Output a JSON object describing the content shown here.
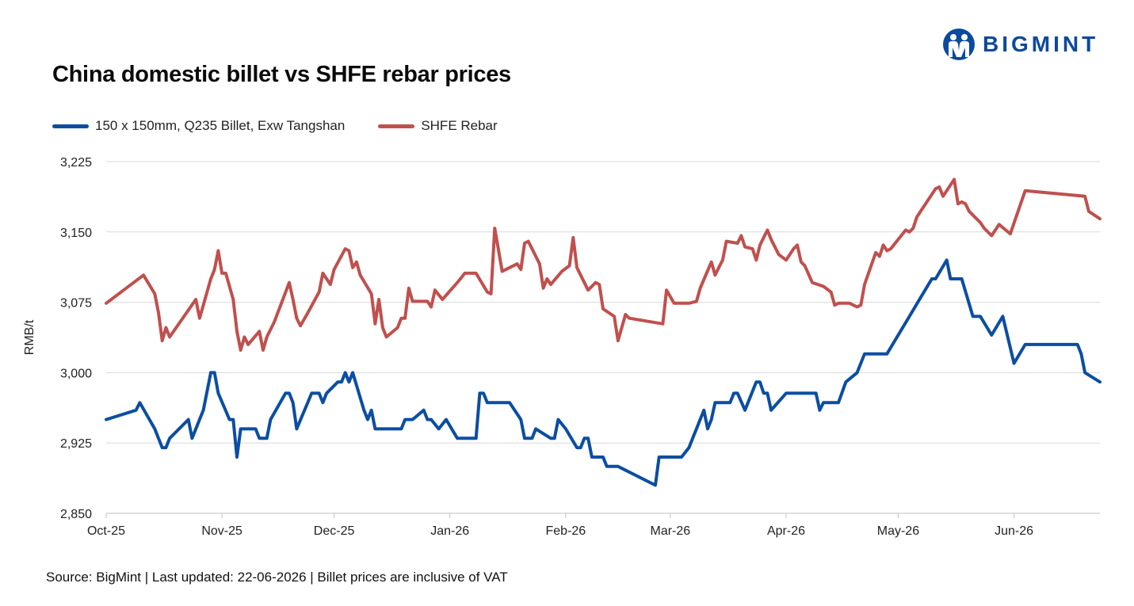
{
  "brand": {
    "name": "BIGMINT",
    "color": "#0b4a9c"
  },
  "chart_data": {
    "type": "line",
    "title": "China domestic billet vs SHFE rebar prices",
    "xlabel": "",
    "ylabel": "RMB/t",
    "ylim": [
      2850,
      3225
    ],
    "yticks": [
      2850,
      2925,
      3000,
      3075,
      3150,
      3225
    ],
    "ytick_labels": [
      "2,850",
      "2,925",
      "3,000",
      "3,075",
      "3,150",
      "3,225"
    ],
    "xlim": [
      "2025-10-01",
      "2026-06-24"
    ],
    "xticks": [
      "2025-10-01",
      "2025-11-01",
      "2025-12-01",
      "2026-01-01",
      "2026-02-01",
      "2026-03-01",
      "2026-04-01",
      "2026-05-01",
      "2026-06-01"
    ],
    "xtick_labels": [
      "Oct-25",
      "Nov-25",
      "Dec-25",
      "Jan-26",
      "Feb-26",
      "Mar-26",
      "Apr-26",
      "May-26",
      "Jun-26"
    ],
    "grid": true,
    "legend_position": "top-left",
    "series": [
      {
        "name": "150 x 150mm, Q235 Billet, Exw Tangshan",
        "color": "#0b4ea2",
        "points": [
          [
            "2025-10-01",
            2950
          ],
          [
            "2025-10-09",
            2960
          ],
          [
            "2025-10-10",
            2968
          ],
          [
            "2025-10-14",
            2940
          ],
          [
            "2025-10-15",
            2930
          ],
          [
            "2025-10-16",
            2920
          ],
          [
            "2025-10-17",
            2920
          ],
          [
            "2025-10-18",
            2930
          ],
          [
            "2025-10-23",
            2950
          ],
          [
            "2025-10-24",
            2930
          ],
          [
            "2025-10-27",
            2960
          ],
          [
            "2025-10-29",
            3000
          ],
          [
            "2025-10-30",
            3000
          ],
          [
            "2025-10-31",
            2978
          ],
          [
            "2025-11-03",
            2950
          ],
          [
            "2025-11-04",
            2950
          ],
          [
            "2025-11-05",
            2910
          ],
          [
            "2025-11-06",
            2940
          ],
          [
            "2025-11-10",
            2940
          ],
          [
            "2025-11-11",
            2930
          ],
          [
            "2025-11-13",
            2930
          ],
          [
            "2025-11-14",
            2950
          ],
          [
            "2025-11-18",
            2978
          ],
          [
            "2025-11-19",
            2978
          ],
          [
            "2025-11-20",
            2968
          ],
          [
            "2025-11-21",
            2940
          ],
          [
            "2025-11-25",
            2978
          ],
          [
            "2025-11-27",
            2978
          ],
          [
            "2025-11-28",
            2968
          ],
          [
            "2025-11-29",
            2978
          ],
          [
            "2025-12-02",
            2990
          ],
          [
            "2025-12-03",
            2990
          ],
          [
            "2025-12-04",
            3000
          ],
          [
            "2025-12-05",
            2990
          ],
          [
            "2025-12-06",
            3000
          ],
          [
            "2025-12-09",
            2960
          ],
          [
            "2025-12-10",
            2950
          ],
          [
            "2025-12-11",
            2960
          ],
          [
            "2025-12-12",
            2940
          ],
          [
            "2025-12-16",
            2940
          ],
          [
            "2025-12-19",
            2940
          ],
          [
            "2025-12-20",
            2950
          ],
          [
            "2025-12-22",
            2950
          ],
          [
            "2025-12-25",
            2960
          ],
          [
            "2025-12-26",
            2950
          ],
          [
            "2025-12-27",
            2950
          ],
          [
            "2025-12-29",
            2940
          ],
          [
            "2025-12-31",
            2950
          ],
          [
            "2026-01-03",
            2930
          ],
          [
            "2026-01-07",
            2930
          ],
          [
            "2026-01-08",
            2930
          ],
          [
            "2026-01-09",
            2978
          ],
          [
            "2026-01-10",
            2978
          ],
          [
            "2026-01-11",
            2968
          ],
          [
            "2026-01-17",
            2968
          ],
          [
            "2026-01-20",
            2950
          ],
          [
            "2026-01-21",
            2930
          ],
          [
            "2026-01-23",
            2930
          ],
          [
            "2026-01-24",
            2940
          ],
          [
            "2026-01-28",
            2930
          ],
          [
            "2026-01-29",
            2930
          ],
          [
            "2026-01-30",
            2950
          ],
          [
            "2026-02-01",
            2940
          ],
          [
            "2026-02-04",
            2920
          ],
          [
            "2026-02-05",
            2920
          ],
          [
            "2026-02-06",
            2930
          ],
          [
            "2026-02-07",
            2930
          ],
          [
            "2026-02-08",
            2910
          ],
          [
            "2026-02-11",
            2910
          ],
          [
            "2026-02-12",
            2900
          ],
          [
            "2026-02-15",
            2900
          ],
          [
            "2026-02-25",
            2880
          ],
          [
            "2026-02-26",
            2910
          ],
          [
            "2026-03-04",
            2910
          ],
          [
            "2026-03-06",
            2920
          ],
          [
            "2026-03-07",
            2930
          ],
          [
            "2026-03-10",
            2960
          ],
          [
            "2026-03-11",
            2940
          ],
          [
            "2026-03-12",
            2950
          ],
          [
            "2026-03-13",
            2968
          ],
          [
            "2026-03-17",
            2968
          ],
          [
            "2026-03-18",
            2978
          ],
          [
            "2026-03-19",
            2978
          ],
          [
            "2026-03-21",
            2960
          ],
          [
            "2026-03-24",
            2990
          ],
          [
            "2026-03-25",
            2990
          ],
          [
            "2026-03-26",
            2978
          ],
          [
            "2026-03-27",
            2978
          ],
          [
            "2026-03-28",
            2960
          ],
          [
            "2026-04-01",
            2978
          ],
          [
            "2026-04-08",
            2978
          ],
          [
            "2026-04-09",
            2978
          ],
          [
            "2026-04-10",
            2960
          ],
          [
            "2026-04-11",
            2968
          ],
          [
            "2026-04-15",
            2968
          ],
          [
            "2026-04-17",
            2990
          ],
          [
            "2026-04-20",
            3000
          ],
          [
            "2026-04-22",
            3020
          ],
          [
            "2026-04-28",
            3020
          ],
          [
            "2026-05-04",
            3060
          ],
          [
            "2026-05-07",
            3080
          ],
          [
            "2026-05-10",
            3100
          ],
          [
            "2026-05-11",
            3100
          ],
          [
            "2026-05-14",
            3120
          ],
          [
            "2026-05-15",
            3100
          ],
          [
            "2026-05-18",
            3100
          ],
          [
            "2026-05-21",
            3060
          ],
          [
            "2026-05-23",
            3060
          ],
          [
            "2026-05-26",
            3040
          ],
          [
            "2026-05-29",
            3060
          ],
          [
            "2026-06-01",
            3010
          ],
          [
            "2026-06-04",
            3030
          ],
          [
            "2026-06-18",
            3030
          ],
          [
            "2026-06-19",
            3020
          ],
          [
            "2026-06-20",
            3000
          ],
          [
            "2026-06-24",
            2990
          ]
        ]
      },
      {
        "name": "SHFE Rebar",
        "color": "#c0504d",
        "points": [
          [
            "2025-10-01",
            3074
          ],
          [
            "2025-10-11",
            3104
          ],
          [
            "2025-10-14",
            3084
          ],
          [
            "2025-10-15",
            3064
          ],
          [
            "2025-10-16",
            3034
          ],
          [
            "2025-10-17",
            3048
          ],
          [
            "2025-10-18",
            3038
          ],
          [
            "2025-10-25",
            3078
          ],
          [
            "2025-10-26",
            3058
          ],
          [
            "2025-10-29",
            3100
          ],
          [
            "2025-10-30",
            3110
          ],
          [
            "2025-10-31",
            3130
          ],
          [
            "2025-11-01",
            3106
          ],
          [
            "2025-11-02",
            3106
          ],
          [
            "2025-11-04",
            3078
          ],
          [
            "2025-11-05",
            3044
          ],
          [
            "2025-11-06",
            3024
          ],
          [
            "2025-11-07",
            3038
          ],
          [
            "2025-11-08",
            3030
          ],
          [
            "2025-11-11",
            3044
          ],
          [
            "2025-11-12",
            3024
          ],
          [
            "2025-11-13",
            3038
          ],
          [
            "2025-11-15",
            3054
          ],
          [
            "2025-11-19",
            3096
          ],
          [
            "2025-11-20",
            3078
          ],
          [
            "2025-11-21",
            3058
          ],
          [
            "2025-11-22",
            3050
          ],
          [
            "2025-11-24",
            3064
          ],
          [
            "2025-11-27",
            3086
          ],
          [
            "2025-11-28",
            3106
          ],
          [
            "2025-11-30",
            3094
          ],
          [
            "2025-12-01",
            3110
          ],
          [
            "2025-12-04",
            3132
          ],
          [
            "2025-12-05",
            3130
          ],
          [
            "2025-12-06",
            3112
          ],
          [
            "2025-12-07",
            3118
          ],
          [
            "2025-12-08",
            3104
          ],
          [
            "2025-12-11",
            3084
          ],
          [
            "2025-12-12",
            3052
          ],
          [
            "2025-12-13",
            3078
          ],
          [
            "2025-12-14",
            3048
          ],
          [
            "2025-12-15",
            3038
          ],
          [
            "2025-12-18",
            3048
          ],
          [
            "2025-12-19",
            3058
          ],
          [
            "2025-12-20",
            3058
          ],
          [
            "2025-12-21",
            3090
          ],
          [
            "2025-12-22",
            3076
          ],
          [
            "2025-12-26",
            3076
          ],
          [
            "2025-12-27",
            3070
          ],
          [
            "2025-12-28",
            3088
          ],
          [
            "2025-12-30",
            3078
          ],
          [
            "2026-01-03",
            3096
          ],
          [
            "2026-01-05",
            3106
          ],
          [
            "2026-01-06",
            3106
          ],
          [
            "2026-01-08",
            3106
          ],
          [
            "2026-01-11",
            3086
          ],
          [
            "2026-01-12",
            3084
          ],
          [
            "2026-01-13",
            3154
          ],
          [
            "2026-01-15",
            3108
          ],
          [
            "2026-01-19",
            3116
          ],
          [
            "2026-01-20",
            3110
          ],
          [
            "2026-01-21",
            3138
          ],
          [
            "2026-01-22",
            3140
          ],
          [
            "2026-01-25",
            3116
          ],
          [
            "2026-01-26",
            3090
          ],
          [
            "2026-01-27",
            3100
          ],
          [
            "2026-01-28",
            3094
          ],
          [
            "2026-01-31",
            3108
          ],
          [
            "2026-02-02",
            3114
          ],
          [
            "2026-02-03",
            3144
          ],
          [
            "2026-02-04",
            3112
          ],
          [
            "2026-02-07",
            3088
          ],
          [
            "2026-02-08",
            3092
          ],
          [
            "2026-02-09",
            3096
          ],
          [
            "2026-02-10",
            3094
          ],
          [
            "2026-02-11",
            3068
          ],
          [
            "2026-02-14",
            3060
          ],
          [
            "2026-02-15",
            3034
          ],
          [
            "2026-02-17",
            3062
          ],
          [
            "2026-02-18",
            3058
          ],
          [
            "2026-02-27",
            3052
          ],
          [
            "2026-02-28",
            3088
          ],
          [
            "2026-03-02",
            3074
          ],
          [
            "2026-03-06",
            3074
          ],
          [
            "2026-03-08",
            3076
          ],
          [
            "2026-03-09",
            3090
          ],
          [
            "2026-03-12",
            3118
          ],
          [
            "2026-03-13",
            3104
          ],
          [
            "2026-03-14",
            3112
          ],
          [
            "2026-03-15",
            3120
          ],
          [
            "2026-03-16",
            3140
          ],
          [
            "2026-03-19",
            3138
          ],
          [
            "2026-03-20",
            3146
          ],
          [
            "2026-03-21",
            3134
          ],
          [
            "2026-03-23",
            3132
          ],
          [
            "2026-03-24",
            3120
          ],
          [
            "2026-03-25",
            3136
          ],
          [
            "2026-03-27",
            3152
          ],
          [
            "2026-03-28",
            3142
          ],
          [
            "2026-03-30",
            3126
          ],
          [
            "2026-04-01",
            3120
          ],
          [
            "2026-04-03",
            3132
          ],
          [
            "2026-04-04",
            3136
          ],
          [
            "2026-04-05",
            3118
          ],
          [
            "2026-04-06",
            3114
          ],
          [
            "2026-04-08",
            3096
          ],
          [
            "2026-04-11",
            3092
          ],
          [
            "2026-04-13",
            3086
          ],
          [
            "2026-04-14",
            3072
          ],
          [
            "2026-04-15",
            3074
          ],
          [
            "2026-04-18",
            3074
          ],
          [
            "2026-04-20",
            3070
          ],
          [
            "2026-04-21",
            3072
          ],
          [
            "2026-04-22",
            3094
          ],
          [
            "2026-04-25",
            3128
          ],
          [
            "2026-04-26",
            3124
          ],
          [
            "2026-04-27",
            3136
          ],
          [
            "2026-04-28",
            3130
          ],
          [
            "2026-04-29",
            3132
          ],
          [
            "2026-05-03",
            3152
          ],
          [
            "2026-05-04",
            3150
          ],
          [
            "2026-05-05",
            3154
          ],
          [
            "2026-05-06",
            3166
          ],
          [
            "2026-05-11",
            3196
          ],
          [
            "2026-05-12",
            3198
          ],
          [
            "2026-05-13",
            3188
          ],
          [
            "2026-05-16",
            3206
          ],
          [
            "2026-05-17",
            3180
          ],
          [
            "2026-05-18",
            3182
          ],
          [
            "2026-05-19",
            3180
          ],
          [
            "2026-05-20",
            3172
          ],
          [
            "2026-05-23",
            3160
          ],
          [
            "2026-05-24",
            3154
          ],
          [
            "2026-05-26",
            3146
          ],
          [
            "2026-05-28",
            3158
          ],
          [
            "2026-05-31",
            3148
          ],
          [
            "2026-06-04",
            3194
          ],
          [
            "2026-06-20",
            3188
          ],
          [
            "2026-06-21",
            3172
          ],
          [
            "2026-06-24",
            3164
          ]
        ]
      }
    ]
  },
  "source_note": "Source: BigMint | Last updated: 22-06-2026 | Billet prices are inclusive of VAT"
}
